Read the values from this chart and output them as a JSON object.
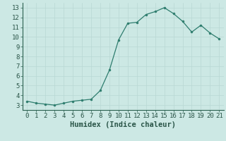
{
  "x": [
    0,
    1,
    2,
    3,
    4,
    5,
    6,
    7,
    8,
    9,
    10,
    11,
    12,
    13,
    14,
    15,
    16,
    17,
    18,
    19,
    20,
    21
  ],
  "y": [
    3.4,
    3.2,
    3.1,
    3.0,
    3.2,
    3.4,
    3.5,
    3.6,
    4.5,
    6.6,
    9.7,
    11.4,
    11.5,
    12.3,
    12.6,
    13.0,
    12.4,
    11.6,
    10.5,
    11.2,
    10.4,
    9.8
  ],
  "line_color": "#2e7d6e",
  "marker_color": "#2e7d6e",
  "bg_color": "#cce8e4",
  "grid_color": "#b8d8d4",
  "xlabel": "Humidex (Indice chaleur)",
  "xlim": [
    -0.5,
    21.5
  ],
  "ylim": [
    2.5,
    13.5
  ],
  "yticks": [
    3,
    4,
    5,
    6,
    7,
    8,
    9,
    10,
    11,
    12,
    13
  ],
  "xticks": [
    0,
    1,
    2,
    3,
    4,
    5,
    6,
    7,
    8,
    9,
    10,
    11,
    12,
    13,
    14,
    15,
    16,
    17,
    18,
    19,
    20,
    21
  ],
  "tick_label_fontsize": 6.5,
  "xlabel_fontsize": 7.5
}
